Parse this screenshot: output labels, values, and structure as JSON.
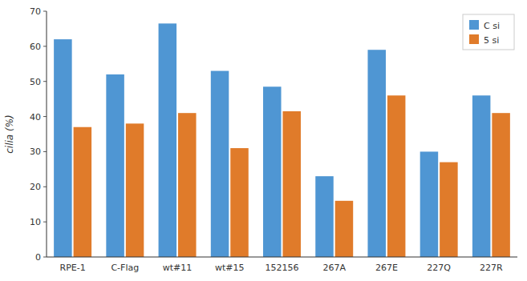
{
  "chart_data": {
    "type": "bar",
    "categories": [
      "RPE-1",
      "C-Flag",
      "wt#11",
      "wt#15",
      "152156",
      "267A",
      "267E",
      "227Q",
      "227R"
    ],
    "series": [
      {
        "name": "C si",
        "color": "#4f96d3",
        "values": [
          62,
          52,
          66.5,
          53,
          48.5,
          23,
          59,
          30,
          46
        ]
      },
      {
        "name": "5 si",
        "color": "#e07b2a",
        "values": [
          37,
          38,
          41,
          31,
          41.5,
          16,
          46,
          27,
          41
        ]
      }
    ],
    "y_label": "cilia (%)",
    "ylim": [
      0,
      70
    ],
    "yticks": [
      0,
      10,
      20,
      30,
      40,
      50,
      60,
      70
    ],
    "legend": "upper right",
    "grid": false
  }
}
